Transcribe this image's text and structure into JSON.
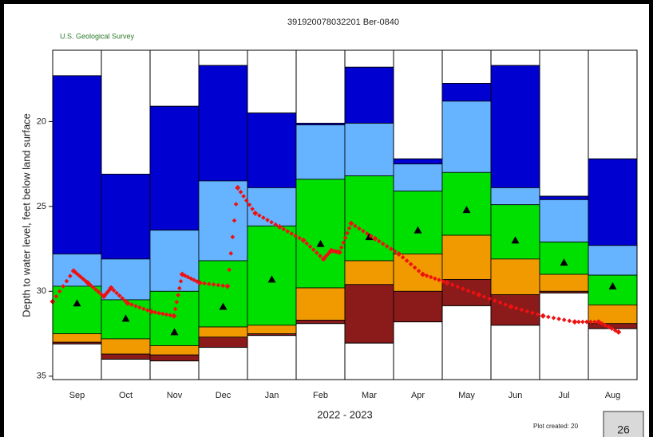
{
  "chart_data": {
    "type": "percentile-bands",
    "title": "391920078032201  Ber-0840",
    "agency": "U.S. Geological Survey",
    "ylabel": "Depth to water level, feet below land surface",
    "xlabel": "2022 - 2023",
    "footnote": "Plot created: 20",
    "page_number": "26",
    "categories": [
      "Sep",
      "Oct",
      "Nov",
      "Dec",
      "Jan",
      "Feb",
      "Mar",
      "Apr",
      "May",
      "Jun",
      "Jul",
      "Aug"
    ],
    "ylim": [
      15.8,
      35.2
    ],
    "yticks": [
      20,
      25,
      30,
      35
    ],
    "y_inverted": true,
    "band_colors": [
      "#0000d0",
      "#66b3ff",
      "#00e000",
      "#f09a00",
      "#8b1a1a"
    ],
    "boundaries": [
      [
        17.3,
        27.8,
        29.7,
        32.5,
        33.0,
        33.1
      ],
      [
        23.1,
        28.1,
        30.5,
        32.8,
        33.7,
        34.0
      ],
      [
        19.1,
        26.4,
        30.0,
        33.2,
        33.75,
        34.1
      ],
      [
        16.7,
        23.5,
        28.2,
        32.1,
        32.7,
        33.3
      ],
      [
        19.5,
        23.9,
        26.15,
        32.0,
        32.5,
        32.6
      ],
      [
        20.1,
        20.2,
        23.4,
        29.8,
        31.7,
        31.9
      ],
      [
        16.8,
        20.1,
        23.2,
        28.2,
        29.6,
        33.05
      ],
      [
        22.2,
        22.5,
        24.1,
        27.8,
        30.0,
        31.8
      ],
      [
        17.75,
        18.8,
        23.0,
        26.7,
        29.3,
        30.85
      ],
      [
        16.7,
        23.9,
        24.9,
        28.1,
        30.2,
        32.0
      ],
      [
        24.4,
        24.6,
        27.1,
        29.0,
        30.0,
        30.1
      ],
      [
        22.2,
        27.3,
        29.05,
        30.8,
        31.9,
        32.2
      ]
    ],
    "medians": [
      30.7,
      31.6,
      32.4,
      30.9,
      29.3,
      27.2,
      26.8,
      26.4,
      25.2,
      27.0,
      28.3,
      29.7
    ],
    "median_color": "#000000",
    "observed": {
      "color": "#ee1111",
      "x": [
        0,
        0.43,
        0.72,
        1.05,
        1.2,
        1.54,
        2.03,
        2.49,
        2.66,
        3.02,
        3.59,
        3.8,
        4.16,
        4.66,
        5.15,
        5.56,
        5.72,
        5.89,
        6.13,
        6.62,
        7.11,
        7.6,
        8.1,
        8.75,
        9.41,
        10.07,
        10.72,
        11.21,
        11.62
      ],
      "values": [
        30.6,
        28.8,
        29.5,
        30.3,
        29.8,
        30.7,
        31.2,
        31.45,
        29.0,
        29.5,
        29.7,
        23.9,
        25.4,
        26.2,
        27.0,
        28.1,
        27.6,
        27.7,
        26.0,
        26.9,
        27.8,
        29.0,
        29.5,
        30.2,
        30.9,
        31.45,
        31.8,
        31.8,
        32.4
      ]
    }
  }
}
